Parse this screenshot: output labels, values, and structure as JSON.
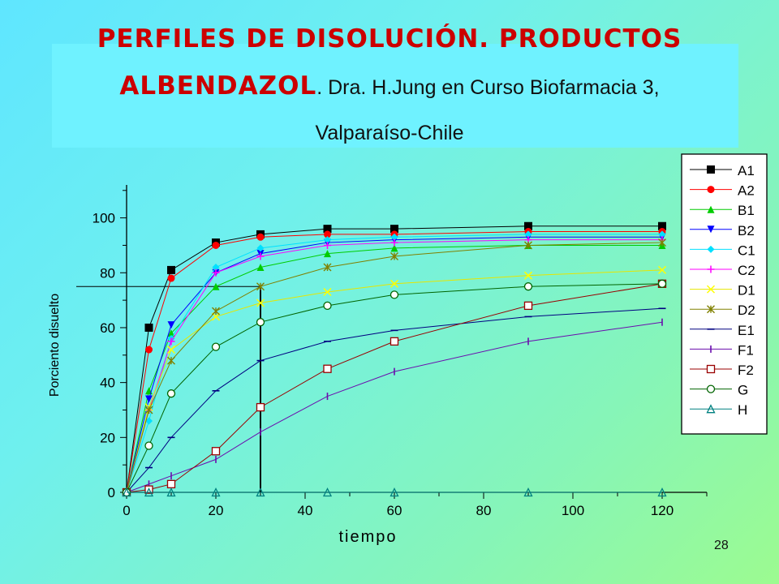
{
  "slide": {
    "title_part1": "PERFILES DE DISOLUCIÓN. PRODUCTOS",
    "title_part2": "ALBENDAZOL",
    "title_part3": ". Dra. H.Jung en Curso Biofarmacia 3,",
    "title_part4": "Valparaíso-Chile",
    "page_number": "28"
  },
  "chart_data": {
    "type": "line",
    "xlabel": "tiempo",
    "ylabel": "Porciento disuelto",
    "xlim": [
      0,
      130
    ],
    "ylim": [
      0,
      112
    ],
    "xticks": [
      0,
      20,
      40,
      60,
      80,
      100,
      120
    ],
    "yticks": [
      0,
      20,
      40,
      60,
      80,
      100
    ],
    "grid": false,
    "legend_position": "right",
    "reference_lines": {
      "horizontal_y": 75,
      "vertical_x": 30
    },
    "x": [
      0,
      5,
      10,
      20,
      30,
      45,
      60,
      90,
      120
    ],
    "series": [
      {
        "name": "A1",
        "marker": "square-filled",
        "color": "#000000",
        "values": [
          0,
          60,
          81,
          91,
          94,
          96,
          96,
          97,
          97
        ]
      },
      {
        "name": "A2",
        "marker": "circle-filled",
        "color": "#ff0000",
        "values": [
          0,
          52,
          78,
          90,
          93,
          94,
          94,
          95,
          95
        ]
      },
      {
        "name": "B1",
        "marker": "triangle-up-filled",
        "color": "#00cc00",
        "values": [
          0,
          37,
          58,
          75,
          82,
          87,
          89,
          90,
          90
        ]
      },
      {
        "name": "B2",
        "marker": "triangle-down-filled",
        "color": "#0000ff",
        "values": [
          0,
          34,
          61,
          80,
          87,
          91,
          92,
          93,
          93
        ]
      },
      {
        "name": "C1",
        "marker": "diamond-filled",
        "color": "#00e0ff",
        "values": [
          0,
          26,
          56,
          82,
          89,
          92,
          93,
          94,
          94
        ]
      },
      {
        "name": "C2",
        "marker": "plus",
        "color": "#ff00ff",
        "values": [
          0,
          30,
          55,
          80,
          86,
          90,
          91,
          92,
          92
        ]
      },
      {
        "name": "D1",
        "marker": "x",
        "color": "#ffff00",
        "values": [
          0,
          31,
          52,
          64,
          69,
          73,
          76,
          79,
          81
        ]
      },
      {
        "name": "D2",
        "marker": "asterisk",
        "color": "#808000",
        "values": [
          0,
          30,
          48,
          66,
          75,
          82,
          86,
          90,
          91
        ]
      },
      {
        "name": "E1",
        "marker": "dash",
        "color": "#000080",
        "values": [
          0,
          9,
          20,
          37,
          48,
          55,
          59,
          64,
          67
        ]
      },
      {
        "name": "F1",
        "marker": "vbar",
        "color": "#6a0dad",
        "values": [
          0,
          3,
          6,
          12,
          22,
          35,
          44,
          55,
          62
        ]
      },
      {
        "name": "F2",
        "marker": "square-open",
        "color": "#990000",
        "values": [
          0,
          1,
          3,
          15,
          31,
          45,
          55,
          68,
          76
        ]
      },
      {
        "name": "G",
        "marker": "circle-open",
        "color": "#006400",
        "values": [
          0,
          17,
          36,
          53,
          62,
          68,
          72,
          75,
          76
        ]
      },
      {
        "name": "H",
        "marker": "triangle-open",
        "color": "#008080",
        "values": [
          0,
          0,
          0,
          0,
          0,
          0,
          0,
          0,
          0
        ]
      }
    ]
  }
}
